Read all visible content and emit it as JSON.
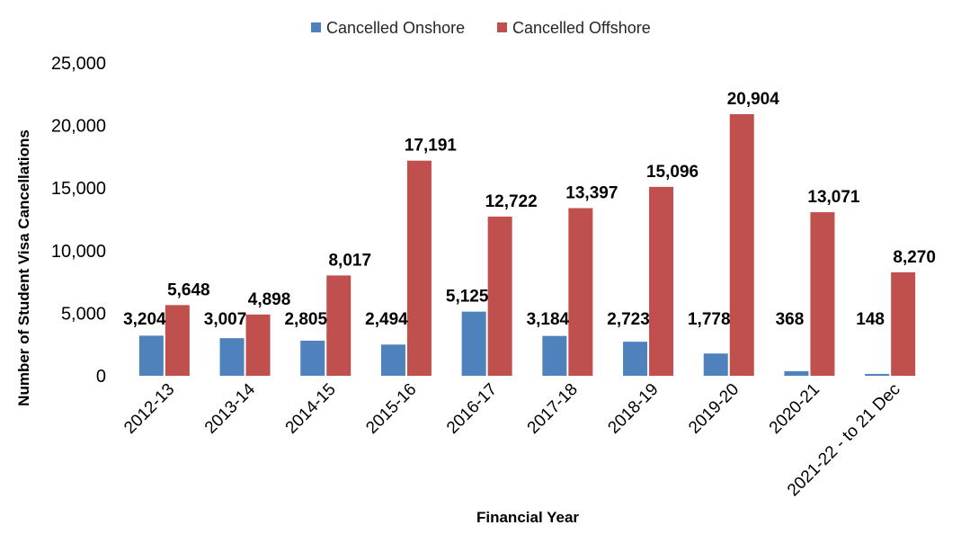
{
  "chart_data": {
    "type": "bar",
    "title": "",
    "xlabel": "Financial Year",
    "ylabel": "Number of Student Visa Cancellations",
    "ylim": [
      0,
      25000
    ],
    "y_ticks": [
      0,
      5000,
      10000,
      15000,
      20000,
      25000
    ],
    "y_tick_labels": [
      "0",
      "5,000",
      "10,000",
      "15,000",
      "20,000",
      "25,000"
    ],
    "grid": false,
    "legend_position": "top-center",
    "categories": [
      "2012-13",
      "2013-14",
      "2014-15",
      "2015-16",
      "2016-17",
      "2017-18",
      "2018-19",
      "2019-20",
      "2020-21",
      "2021-22 - to 21 Dec"
    ],
    "series": [
      {
        "name": "Cancelled Onshore",
        "color": "#4f81bd",
        "values": [
          3204,
          3007,
          2805,
          2494,
          5125,
          3184,
          2723,
          1778,
          368,
          148
        ],
        "labels": [
          "3,204",
          "3,007",
          "2,805",
          "2,494",
          "5,125",
          "3,184",
          "2,723",
          "1,778",
          "368",
          "148"
        ]
      },
      {
        "name": "Cancelled Offshore",
        "color": "#c0504d",
        "values": [
          5648,
          4898,
          8017,
          17191,
          12722,
          13397,
          15096,
          20904,
          13071,
          8270
        ],
        "labels": [
          "5,648",
          "4,898",
          "8,017",
          "17,191",
          "12,722",
          "13,397",
          "15,096",
          "20,904",
          "13,071",
          "8,270"
        ]
      }
    ]
  }
}
